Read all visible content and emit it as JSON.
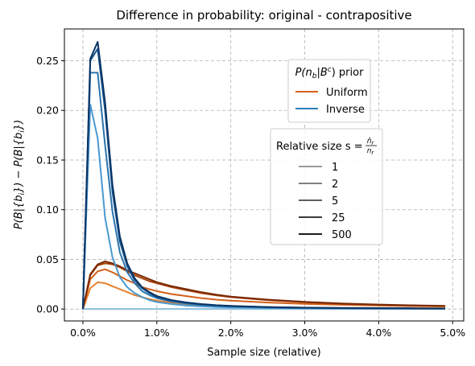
{
  "chart_data": {
    "type": "line",
    "title": "Difference in probability: original - contrapositive",
    "xlabel": "Sample size (relative)",
    "ylabel_parts": [
      "P(B|{b",
      "i",
      "}) − P(B|{",
      "b",
      "i",
      "})"
    ],
    "xlim": [
      -0.0025,
      0.0515
    ],
    "ylim": [
      -0.012,
      0.282
    ],
    "x_ticks": [
      0.0,
      0.01,
      0.02,
      0.03,
      0.04,
      0.05
    ],
    "x_tick_labels": [
      "0.0%",
      "1.0%",
      "2.0%",
      "3.0%",
      "4.0%",
      "5.0%"
    ],
    "y_ticks": [
      0.0,
      0.05,
      0.1,
      0.15,
      0.2,
      0.25
    ],
    "y_tick_labels": [
      "0.00",
      "0.05",
      "0.10",
      "0.15",
      "0.20",
      "0.25"
    ],
    "grid": true,
    "legend_prior": {
      "title_parts": [
        "P(n",
        "b",
        "|B",
        "c",
        ") prior"
      ],
      "entries": [
        {
          "label": "Uniform",
          "color": "#d95f0e"
        },
        {
          "label": "Inverse",
          "color": "#2c7fb8"
        }
      ]
    },
    "legend_size": {
      "title_parts": [
        "Relative size s = ",
        "n̂",
        "r",
        "n",
        "r"
      ],
      "entries": [
        {
          "label": "1",
          "color": "#9a9a9a"
        },
        {
          "label": "2",
          "color": "#808080"
        },
        {
          "label": "5",
          "color": "#5e5e5e"
        },
        {
          "label": "25",
          "color": "#3a3a3a"
        },
        {
          "label": "500",
          "color": "#1c1c1c"
        }
      ]
    },
    "x": [
      0.0,
      0.001,
      0.002,
      0.003,
      0.004,
      0.005,
      0.006,
      0.007,
      0.008,
      0.009,
      0.01,
      0.012,
      0.014,
      0.016,
      0.018,
      0.02,
      0.025,
      0.03,
      0.035,
      0.04,
      0.045,
      0.049
    ],
    "series": [
      {
        "name": "Uniform, s=1",
        "color": "#f0a060",
        "values": [
          0.0,
          0.0,
          0.0,
          0.0,
          0.0,
          0.0,
          0.0,
          0.0,
          0.0,
          0.0,
          0.0,
          0.0,
          0.0,
          0.0,
          0.0,
          0.0,
          0.0,
          0.0,
          0.0,
          0.0,
          0.0,
          0.0
        ]
      },
      {
        "name": "Uniform, s=2",
        "color": "#e6812f",
        "values": [
          0.0,
          0.021,
          0.027,
          0.026,
          0.023,
          0.02,
          0.017,
          0.014,
          0.012,
          0.01,
          0.0085,
          0.0065,
          0.005,
          0.004,
          0.0034,
          0.003,
          0.002,
          0.0015,
          0.0012,
          0.0011,
          0.001,
          0.0009
        ]
      },
      {
        "name": "Uniform, s=5",
        "color": "#d2601a",
        "values": [
          0.0,
          0.03,
          0.038,
          0.04,
          0.037,
          0.033,
          0.029,
          0.026,
          0.022,
          0.02,
          0.018,
          0.015,
          0.013,
          0.011,
          0.0095,
          0.0085,
          0.0065,
          0.0052,
          0.0043,
          0.0036,
          0.003,
          0.0027
        ]
      },
      {
        "name": "Uniform, s=25",
        "color": "#a8430c",
        "values": [
          0.0,
          0.034,
          0.044,
          0.046,
          0.045,
          0.042,
          0.038,
          0.034,
          0.031,
          0.028,
          0.026,
          0.022,
          0.019,
          0.016,
          0.0138,
          0.012,
          0.009,
          0.0068,
          0.0052,
          0.0042,
          0.0035,
          0.003
        ]
      },
      {
        "name": "Uniform, s=500",
        "color": "#7a2a04",
        "values": [
          0.0,
          0.035,
          0.045,
          0.048,
          0.046,
          0.043,
          0.039,
          0.036,
          0.033,
          0.03,
          0.027,
          0.023,
          0.02,
          0.017,
          0.0145,
          0.0125,
          0.0095,
          0.0072,
          0.0056,
          0.0045,
          0.0037,
          0.0032
        ]
      },
      {
        "name": "Inverse, s=1",
        "color": "#8cc3e8",
        "values": [
          0.0,
          0.0,
          0.0,
          0.0,
          0.0,
          0.0,
          0.0,
          0.0,
          0.0,
          0.0,
          0.0,
          0.0,
          0.0,
          0.0,
          0.0,
          0.0,
          0.0,
          0.0,
          0.0,
          0.0,
          0.0,
          0.0
        ]
      },
      {
        "name": "Inverse, s=2",
        "color": "#4a98cf",
        "values": [
          0.0,
          0.206,
          0.172,
          0.092,
          0.052,
          0.032,
          0.022,
          0.016,
          0.012,
          0.009,
          0.007,
          0.005,
          0.0035,
          0.0027,
          0.0021,
          0.0017,
          0.0011,
          0.0008,
          0.0006,
          0.0005,
          0.0004,
          0.0003
        ]
      },
      {
        "name": "Inverse, s=5",
        "color": "#2b74ad",
        "values": [
          0.0,
          0.238,
          0.238,
          0.165,
          0.098,
          0.057,
          0.037,
          0.026,
          0.018,
          0.014,
          0.011,
          0.0075,
          0.0055,
          0.0042,
          0.0033,
          0.0027,
          0.0017,
          0.0012,
          0.0009,
          0.0007,
          0.0006,
          0.0005
        ]
      },
      {
        "name": "Inverse, s=25",
        "color": "#175590",
        "values": [
          0.0,
          0.25,
          0.262,
          0.2,
          0.118,
          0.068,
          0.043,
          0.029,
          0.021,
          0.016,
          0.012,
          0.0085,
          0.0062,
          0.0047,
          0.0037,
          0.003,
          0.0019,
          0.0013,
          0.001,
          0.0008,
          0.0006,
          0.0005
        ]
      },
      {
        "name": "Inverse, s=500",
        "color": "#0b3566",
        "values": [
          0.0,
          0.252,
          0.269,
          0.208,
          0.125,
          0.073,
          0.046,
          0.031,
          0.022,
          0.017,
          0.013,
          0.009,
          0.0066,
          0.005,
          0.0039,
          0.0032,
          0.002,
          0.0014,
          0.0011,
          0.0009,
          0.0007,
          0.0006
        ]
      }
    ]
  }
}
